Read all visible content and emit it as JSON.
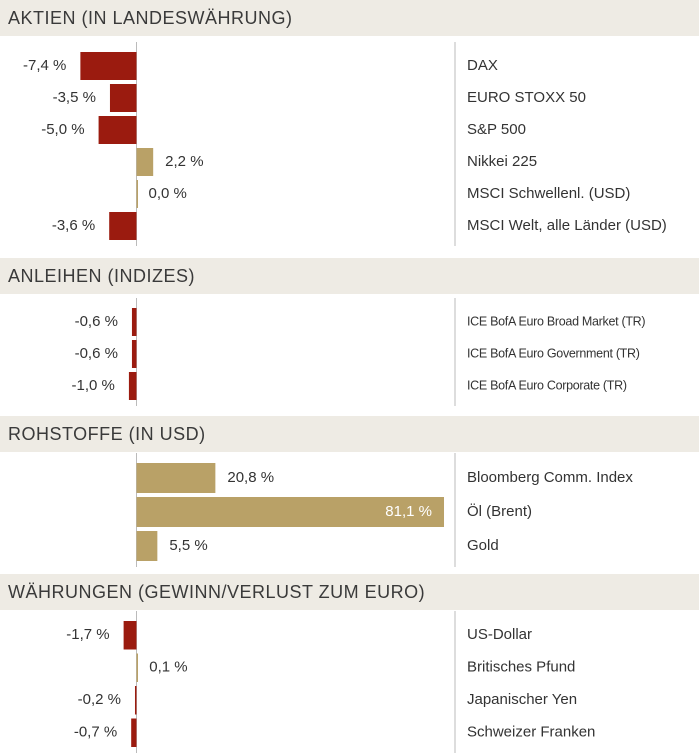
{
  "chart_data": [
    {
      "type": "bar",
      "title": "AKTIEN (IN LANDESWÄHRUNG)",
      "categories": [
        "DAX",
        "EURO STOXX 50",
        "S&P 500",
        "Nikkei 225",
        "MSCI Schwellenl. (USD)",
        "MSCI Welt, alle Länder (USD)"
      ],
      "values": [
        -7.4,
        -3.5,
        -5.0,
        2.2,
        0.0,
        -3.6
      ],
      "value_labels": [
        "-7,4 %",
        "-3,5 %",
        "-5,0 %",
        "2,2 %",
        "0,0 %",
        "-3,6 %"
      ],
      "xlim": [
        -18,
        42
      ],
      "colors": {
        "negative": "#9b1b0f",
        "positive": "#b9a167"
      }
    },
    {
      "type": "bar",
      "title": "ANLEIHEN (INDIZES)",
      "categories": [
        "ICE BofA Euro Broad Market (TR)",
        "ICE BofA Euro Government (TR)",
        "ICE BofA Euro Corporate (TR)"
      ],
      "values": [
        -0.6,
        -0.6,
        -1.0
      ],
      "value_labels": [
        "-0,6 %",
        "-0,6 %",
        "-1,0 %"
      ],
      "xlim": [
        -18,
        42
      ],
      "colors": {
        "negative": "#9b1b0f",
        "positive": "#b9a167"
      }
    },
    {
      "type": "bar",
      "title": "ROHSTOFFE (IN USD)",
      "categories": [
        "Bloomberg Comm. Index",
        "Öl (Brent)",
        "Gold"
      ],
      "values": [
        20.8,
        81.1,
        5.5
      ],
      "value_labels": [
        "20,8 %",
        "81,1 %",
        "5,5 %"
      ],
      "xlim": [
        -36,
        84
      ],
      "colors": {
        "negative": "#9b1b0f",
        "positive": "#b9a167"
      }
    },
    {
      "type": "bar",
      "title": "WÄHRUNGEN (GEWINN/VERLUST ZUM EURO)",
      "categories": [
        "US-Dollar",
        "Britisches Pfund",
        "Japanischer Yen",
        "Schweizer Franken"
      ],
      "values": [
        -1.7,
        0.1,
        -0.2,
        -0.7
      ],
      "value_labels": [
        "-1,7 %",
        "0,1 %",
        "-0,2 %",
        "-0,7 %"
      ],
      "xlim": [
        -18,
        42
      ],
      "colors": {
        "negative": "#9b1b0f",
        "positive": "#b9a167"
      }
    }
  ]
}
